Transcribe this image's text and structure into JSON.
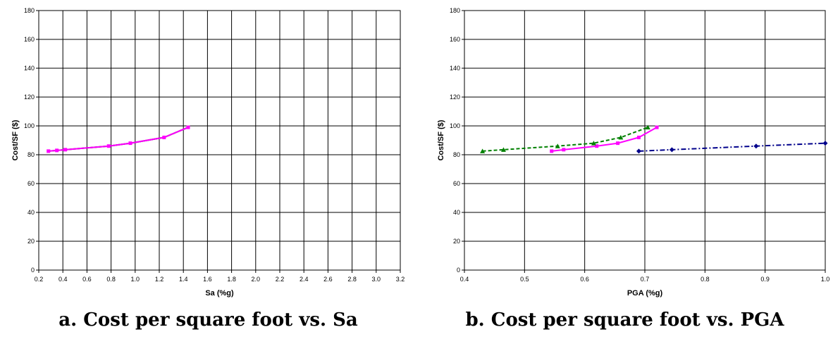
{
  "chart_data": [
    {
      "type": "line",
      "caption": "a. Cost per square foot vs. Sa",
      "xlabel": "Sa (%g)",
      "ylabel": "Cost/SF ($)",
      "xlim": [
        0.2,
        3.2
      ],
      "ylim": [
        0,
        180
      ],
      "xticks": [
        "0.2",
        "0.4",
        "0.6",
        "0.8",
        "1.0",
        "1.2",
        "1.4",
        "1.6",
        "1.8",
        "2.0",
        "2.2",
        "2.4",
        "2.6",
        "2.8",
        "3.0",
        "3.2"
      ],
      "yticks": [
        "0",
        "20",
        "40",
        "60",
        "80",
        "100",
        "120",
        "140",
        "160",
        "180"
      ],
      "grid": true,
      "series": [
        {
          "color": "#000000",
          "marker": "none",
          "dash": "solid",
          "x": [
            0.28,
            0.35,
            0.42,
            0.78,
            0.96,
            1.24,
            1.44
          ],
          "y": [
            82.5,
            83,
            83.5,
            86,
            88,
            92,
            99
          ]
        },
        {
          "color": "#ff00ff",
          "marker": "square",
          "dash": "solid",
          "x": [
            0.28,
            0.35,
            0.42,
            0.78,
            0.96,
            1.24,
            1.44
          ],
          "y": [
            82.5,
            83,
            83.5,
            86,
            88,
            92,
            99
          ]
        }
      ]
    },
    {
      "type": "line",
      "caption": "b. Cost per square foot vs. PGA",
      "xlabel": "PGA (%g)",
      "ylabel": "Cost/SF ($)",
      "xlim": [
        0.4,
        1.0
      ],
      "ylim": [
        0,
        180
      ],
      "xticks": [
        "0.4",
        "0.5",
        "0.6",
        "0.7",
        "0.8",
        "0.9",
        "1.0"
      ],
      "yticks": [
        "0",
        "20",
        "40",
        "60",
        "80",
        "100",
        "120",
        "140",
        "160",
        "180"
      ],
      "grid": true,
      "series": [
        {
          "color": "#00008b",
          "marker": "diamond",
          "dash": "dashdot",
          "x": [
            0.69,
            0.745,
            0.885,
            1.0
          ],
          "y": [
            82.5,
            83.5,
            86,
            88
          ]
        },
        {
          "color": "#ff00ff",
          "marker": "square",
          "dash": "solid",
          "x": [
            0.545,
            0.565,
            0.62,
            0.655,
            0.69,
            0.72
          ],
          "y": [
            82.5,
            83.5,
            86,
            88,
            92,
            99
          ]
        },
        {
          "color": "#008000",
          "marker": "triangle",
          "dash": "dashed",
          "x": [
            0.43,
            0.465,
            0.555,
            0.615,
            0.66,
            0.705
          ],
          "y": [
            82.5,
            83.5,
            86,
            88,
            92,
            99
          ]
        }
      ]
    }
  ]
}
